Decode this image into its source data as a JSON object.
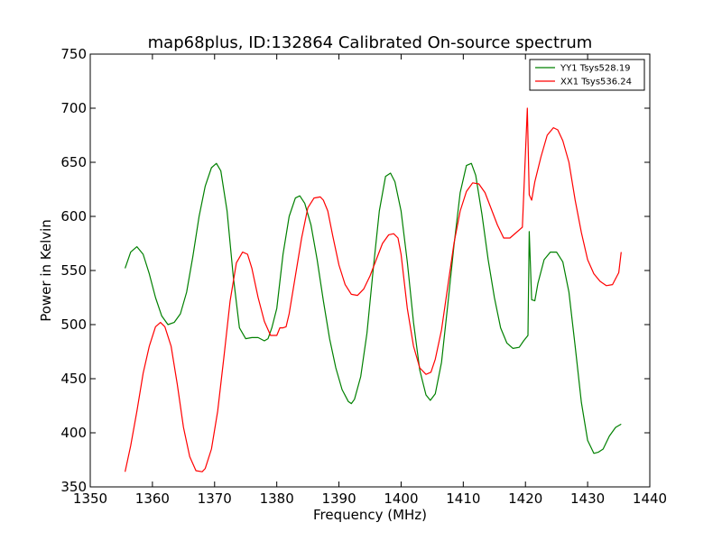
{
  "chart_data": {
    "type": "line",
    "title": "map68plus, ID:132864 Calibrated On-source spectrum",
    "xlabel": "Frequency (MHz)",
    "ylabel": "Power in Kelvin",
    "xlim": [
      1350,
      1440
    ],
    "ylim": [
      350,
      750
    ],
    "xticks": [
      1350,
      1360,
      1370,
      1380,
      1390,
      1400,
      1410,
      1420,
      1430,
      1440
    ],
    "yticks": [
      350,
      400,
      450,
      500,
      550,
      600,
      650,
      700,
      750
    ],
    "grid": false,
    "legend_position": "top-right",
    "series": [
      {
        "name": "YY1 Tsys528.19",
        "color": "#008000",
        "x": [
          1355.6,
          1356.5,
          1357.5,
          1358.5,
          1359.5,
          1360.5,
          1361.5,
          1362.5,
          1363.5,
          1364.5,
          1365.5,
          1366.5,
          1367.5,
          1368.5,
          1369.5,
          1370.3,
          1371,
          1372,
          1373,
          1374,
          1375,
          1376,
          1377,
          1378,
          1378.6,
          1379.2,
          1380,
          1381,
          1382,
          1383,
          1383.7,
          1384.5,
          1385.5,
          1386.5,
          1387.5,
          1388.5,
          1389.5,
          1390.5,
          1391.5,
          1392,
          1392.5,
          1393.5,
          1394.5,
          1395.5,
          1396.5,
          1397.5,
          1398.3,
          1399,
          1400,
          1401,
          1402,
          1403,
          1404,
          1404.7,
          1405.5,
          1406.5,
          1407.5,
          1408.5,
          1409.5,
          1410.5,
          1411.3,
          1412,
          1413,
          1414,
          1415,
          1416,
          1417,
          1418,
          1419,
          1419.7,
          1420.4,
          1420.6,
          1421,
          1421.5,
          1422,
          1423,
          1424,
          1425,
          1426,
          1427,
          1428,
          1429,
          1430,
          1431,
          1431.7,
          1432.5,
          1433.5,
          1434.5,
          1435.4
        ],
        "values": [
          552,
          567,
          572,
          565,
          547,
          525,
          508,
          500,
          502,
          510,
          530,
          563,
          600,
          628,
          645,
          649,
          642,
          605,
          545,
          497,
          487,
          488,
          488,
          485,
          487,
          497,
          515,
          565,
          600,
          617,
          619,
          612,
          592,
          560,
          522,
          487,
          460,
          440,
          429,
          427,
          431,
          452,
          492,
          550,
          605,
          637,
          640,
          632,
          605,
          558,
          502,
          458,
          435,
          430,
          436,
          465,
          518,
          573,
          622,
          647,
          649,
          638,
          602,
          560,
          525,
          497,
          483,
          478,
          479,
          485,
          490,
          586,
          523,
          522,
          538,
          560,
          567,
          567,
          558,
          530,
          480,
          428,
          393,
          381,
          382,
          385,
          397,
          405,
          408
        ]
      },
      {
        "name": "XX1 Tsys536.24",
        "color": "#ff0000",
        "x": [
          1355.6,
          1356.5,
          1357.5,
          1358.5,
          1359.5,
          1360.5,
          1361.3,
          1362,
          1363,
          1364,
          1365,
          1366,
          1367,
          1368,
          1368.5,
          1369.5,
          1370.5,
          1371.5,
          1372.5,
          1373.5,
          1374.5,
          1375.3,
          1376,
          1377,
          1378,
          1379,
          1380,
          1380.5,
          1381,
          1381.5,
          1382,
          1383,
          1384,
          1385,
          1386,
          1387,
          1387.5,
          1388.2,
          1389,
          1390,
          1391,
          1392,
          1393,
          1394,
          1395,
          1396,
          1397,
          1398,
          1398.8,
          1399.5,
          1400,
          1401,
          1402,
          1403,
          1404,
          1404.8,
          1405.5,
          1406.5,
          1407.5,
          1408.5,
          1409.5,
          1410.5,
          1411.5,
          1412.5,
          1413.5,
          1414.5,
          1415.5,
          1416.5,
          1417.5,
          1418.5,
          1419.5,
          1420.3,
          1420.6,
          1421,
          1421.5,
          1422.5,
          1423.5,
          1424.5,
          1425.2,
          1426,
          1427,
          1428,
          1429,
          1430,
          1431,
          1432,
          1433,
          1434,
          1435,
          1435.4
        ],
        "values": [
          364,
          388,
          420,
          455,
          480,
          498,
          502,
          498,
          480,
          445,
          405,
          378,
          365,
          364,
          367,
          385,
          420,
          470,
          522,
          557,
          567,
          565,
          552,
          525,
          503,
          490,
          490,
          497,
          497,
          498,
          510,
          545,
          580,
          608,
          617,
          618,
          615,
          605,
          582,
          555,
          537,
          528,
          527,
          533,
          545,
          560,
          575,
          583,
          584,
          580,
          565,
          515,
          480,
          460,
          454,
          456,
          468,
          495,
          535,
          575,
          605,
          623,
          631,
          630,
          622,
          607,
          592,
          580,
          580,
          585,
          590,
          700,
          620,
          615,
          632,
          655,
          675,
          682,
          680,
          670,
          650,
          615,
          585,
          560,
          547,
          540,
          536,
          537,
          548,
          567
        ]
      }
    ]
  }
}
